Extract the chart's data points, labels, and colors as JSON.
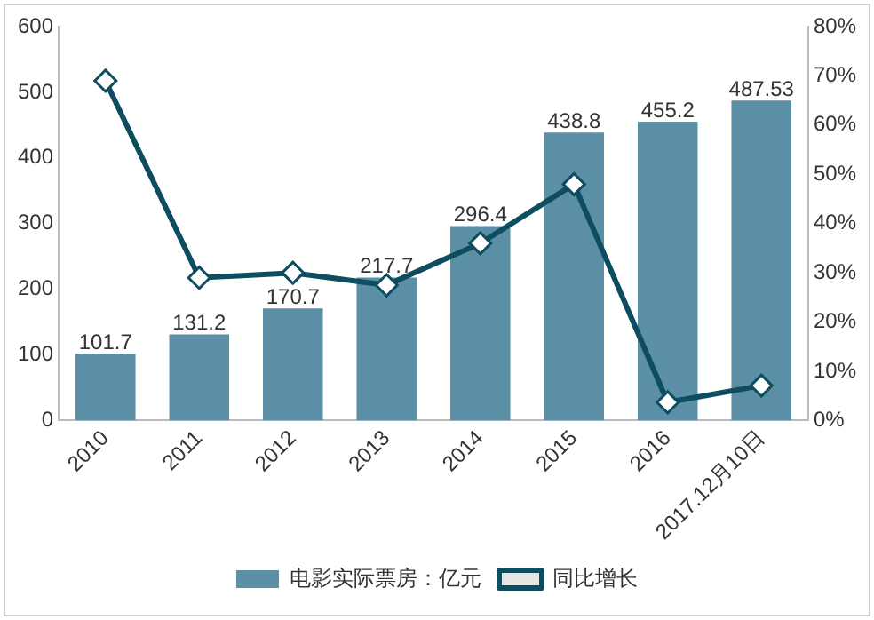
{
  "chart_data": {
    "type": "bar",
    "categories": [
      "2010",
      "2011",
      "2012",
      "2013",
      "2014",
      "2015",
      "2016",
      "2017.12月10日"
    ],
    "series": [
      {
        "name": "电影实际票房：亿元",
        "color": "#5b8fa6",
        "values": [
          101.7,
          131.2,
          170.7,
          217.7,
          296.4,
          438.8,
          455.2,
          487.53
        ],
        "value_labels": [
          "101.7",
          "131.2",
          "170.7",
          "217.7",
          "296.4",
          "438.8",
          "455.2",
          "487.53"
        ]
      },
      {
        "name": "同比增长",
        "type": "line",
        "axis": "y2",
        "color": "#0e4c5f",
        "marker": "diamond",
        "values": [
          69,
          29,
          30,
          27.5,
          36,
          48,
          3.7,
          7.1
        ]
      }
    ],
    "ylim": [
      0,
      600
    ],
    "yticks": [
      0,
      100,
      200,
      300,
      400,
      500,
      600
    ],
    "y2lim": [
      0,
      80
    ],
    "y2ticks": [
      {
        "value": 0,
        "label": "0%"
      },
      {
        "value": 10,
        "label": "10%"
      },
      {
        "value": 20,
        "label": "20%"
      },
      {
        "value": 30,
        "label": "30%"
      },
      {
        "value": 40,
        "label": "40%"
      },
      {
        "value": 50,
        "label": "50%"
      },
      {
        "value": 60,
        "label": "60%"
      },
      {
        "value": 70,
        "label": "70%"
      },
      {
        "value": 80,
        "label": "80%"
      }
    ],
    "grid": false,
    "legend": "bottom"
  }
}
